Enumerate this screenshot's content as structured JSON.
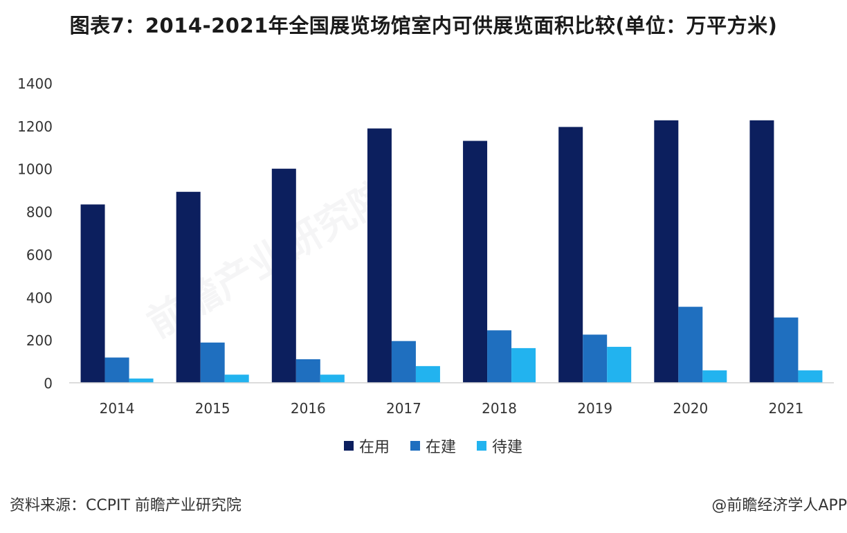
{
  "header": {
    "title": "图表7：2014-2021年全国展览场馆室内可供展览面积比较(单位：万平方米)"
  },
  "footer": {
    "source": "资料来源：CCPIT 前瞻产业研究院",
    "credit": "@前瞻经济学人APP"
  },
  "watermark": {
    "text": "前瞻产业研究院"
  },
  "chart_data": {
    "type": "bar",
    "categories": [
      "2014",
      "2015",
      "2016",
      "2017",
      "2018",
      "2019",
      "2020",
      "2021"
    ],
    "series": [
      {
        "name": "在用",
        "color": "#0c1f5e",
        "values": [
          833,
          892,
          1000,
          1188,
          1130,
          1195,
          1226,
          1226
        ]
      },
      {
        "name": "在建",
        "color": "#1f6fbf",
        "values": [
          118,
          188,
          110,
          195,
          245,
          225,
          355,
          305
        ]
      },
      {
        "name": "待建",
        "color": "#22b3ef",
        "values": [
          20,
          38,
          38,
          78,
          162,
          168,
          58,
          58
        ]
      }
    ],
    "yticks": [
      0,
      200,
      400,
      600,
      800,
      1000,
      1200,
      1400
    ],
    "ylim": [
      0,
      1400
    ],
    "legend_position": "bottom",
    "grid": false
  }
}
